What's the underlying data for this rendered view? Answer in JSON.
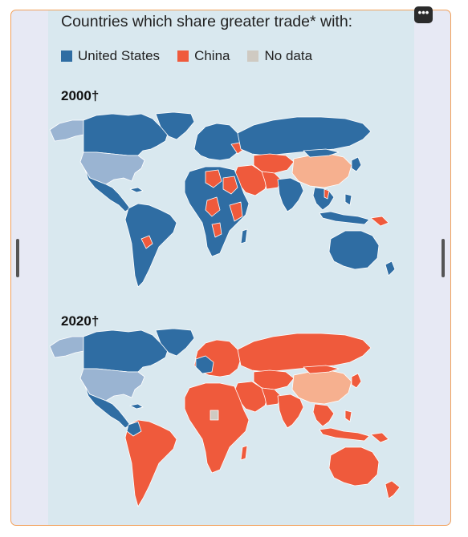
{
  "title": "Countries which share greater trade* with:",
  "legend": [
    {
      "label": "United States",
      "color": "#2f6da3"
    },
    {
      "label": "China",
      "color": "#ef5a3c"
    },
    {
      "label": "No data",
      "color": "#cfcac2"
    }
  ],
  "colors": {
    "us_dark": "#2f6da3",
    "us_light": "#9ab4d2",
    "china": "#ef5a3c",
    "china_light": "#f6b08f",
    "no_data": "#cfcac2",
    "ocean": "#d9e8ef"
  },
  "maps": [
    {
      "year_label": "2000†",
      "dominant": "United States"
    },
    {
      "year_label": "2020†",
      "dominant": "China"
    }
  ],
  "menu_icon": "more-horizontal-icon",
  "menu_glyph": "•••"
}
